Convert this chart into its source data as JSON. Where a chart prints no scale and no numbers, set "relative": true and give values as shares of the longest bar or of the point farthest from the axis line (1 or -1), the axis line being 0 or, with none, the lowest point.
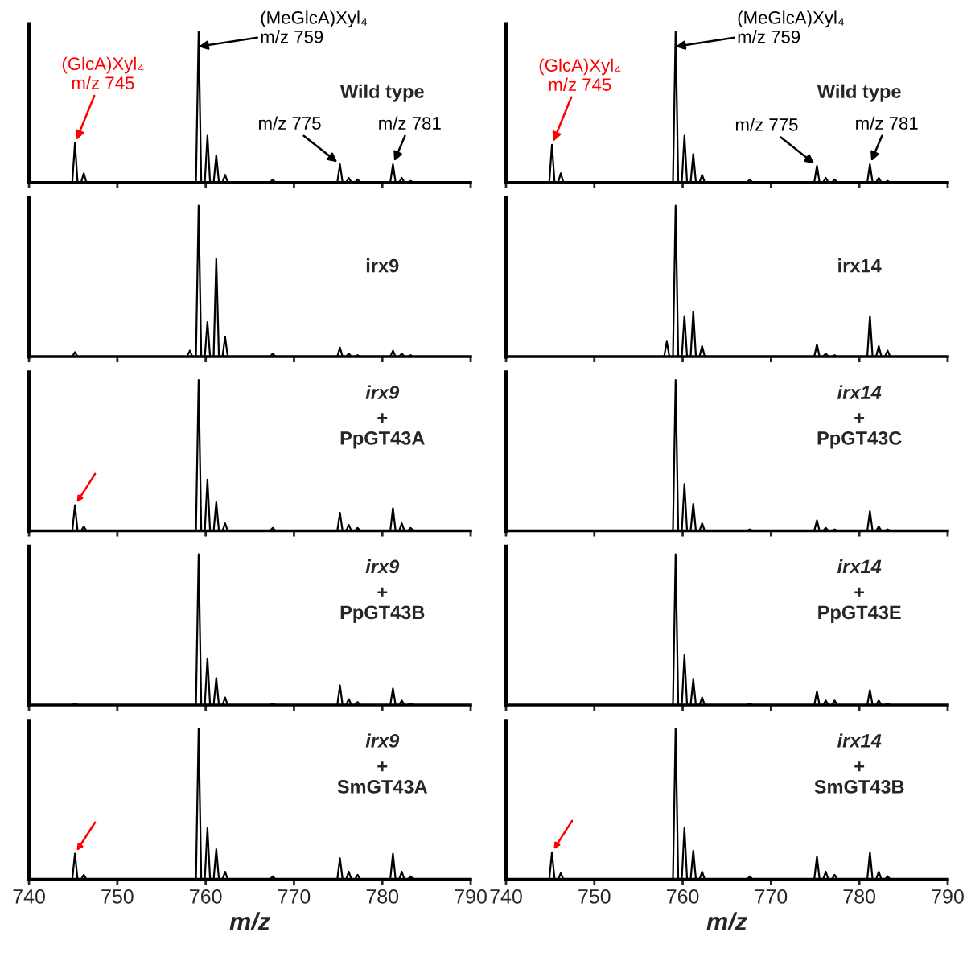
{
  "chart_data": [
    {
      "type": "line",
      "title": "Wild type",
      "relative": true,
      "xlim": [
        740,
        790
      ],
      "xticks": [
        740,
        750,
        760,
        770,
        780,
        790
      ],
      "tick_labels": false,
      "grid": false,
      "legend": false,
      "x": [
        740,
        744.9,
        745.2,
        745.5,
        745.9,
        746.2,
        746.5,
        757.9,
        758.2,
        758.5,
        758.9,
        759.2,
        759.5,
        759.9,
        760.2,
        760.5,
        760.9,
        761.2,
        761.5,
        761.9,
        762.2,
        762.5,
        767.3,
        767.6,
        767.9,
        774.9,
        775.2,
        775.5,
        775.9,
        776.2,
        776.5,
        776.9,
        777.2,
        777.5,
        780.9,
        781.2,
        781.5,
        781.9,
        782.2,
        782.5,
        782.9,
        783.2,
        783.5,
        790
      ],
      "series": [
        {
          "color": "#000000",
          "values": [
            0,
            0,
            0.26,
            0,
            0,
            0.06,
            0,
            0,
            0,
            0,
            0,
            1,
            0,
            0,
            0.31,
            0,
            0,
            0.18,
            0,
            0,
            0.05,
            0,
            0,
            0.02,
            0,
            0,
            0.12,
            0,
            0,
            0.03,
            0,
            0,
            0.02,
            0,
            0,
            0.12,
            0,
            0,
            0.03,
            0,
            0,
            0.01,
            0,
            0
          ]
        }
      ],
      "annotations": [
        {
          "text": "(GlcA)Xyl₄\nm/z 745",
          "x": 745.2,
          "y": 0.26
        },
        {
          "text": "(MeGlcA)Xyl₄\nm/z 759",
          "x": 759.2,
          "y": 0.9
        },
        {
          "text": "m/z 775",
          "x": 775.2,
          "y": 0.12
        },
        {
          "text": "m/z 781",
          "x": 781.2,
          "y": 0.12
        }
      ]
    },
    {
      "type": "line",
      "title": "Wild type",
      "relative": true,
      "xlim": [
        740,
        790
      ],
      "xticks": [
        740,
        750,
        760,
        770,
        780,
        790
      ],
      "tick_labels": false,
      "grid": false,
      "legend": false,
      "x": [
        740,
        744.9,
        745.2,
        745.5,
        745.9,
        746.2,
        746.5,
        757.9,
        758.2,
        758.5,
        758.9,
        759.2,
        759.5,
        759.9,
        760.2,
        760.5,
        760.9,
        761.2,
        761.5,
        761.9,
        762.2,
        762.5,
        767.3,
        767.6,
        767.9,
        774.9,
        775.2,
        775.5,
        775.9,
        776.2,
        776.5,
        776.9,
        777.2,
        777.5,
        780.9,
        781.2,
        781.5,
        781.9,
        782.2,
        782.5,
        782.9,
        783.2,
        783.5,
        790
      ],
      "series": [
        {
          "color": "#000000",
          "values": [
            0,
            0,
            0.25,
            0,
            0,
            0.06,
            0,
            0,
            0,
            0,
            0,
            1,
            0,
            0,
            0.31,
            0,
            0,
            0.19,
            0,
            0,
            0.05,
            0,
            0,
            0.02,
            0,
            0,
            0.11,
            0,
            0,
            0.03,
            0,
            0,
            0.02,
            0,
            0,
            0.12,
            0,
            0,
            0.03,
            0,
            0,
            0.01,
            0,
            0
          ]
        }
      ],
      "annotations": [
        {
          "text": "(GlcA)Xyl₄\nm/z 745",
          "x": 745.2,
          "y": 0.25
        },
        {
          "text": "(MeGlcA)Xyl₄\nm/z 759",
          "x": 759.2,
          "y": 0.9
        },
        {
          "text": "m/z 775",
          "x": 775.2,
          "y": 0.11
        },
        {
          "text": "m/z 781",
          "x": 781.2,
          "y": 0.12
        }
      ]
    },
    {
      "type": "line",
      "title": "irx9",
      "relative": true,
      "xlim": [
        740,
        790
      ],
      "xticks": [
        740,
        750,
        760,
        770,
        780,
        790
      ],
      "tick_labels": false,
      "grid": false,
      "legend": false,
      "x": [
        740,
        744.9,
        745.2,
        745.5,
        745.9,
        746.2,
        746.5,
        757.9,
        758.2,
        758.5,
        758.9,
        759.2,
        759.5,
        759.9,
        760.2,
        760.5,
        760.9,
        761.2,
        761.5,
        761.9,
        762.2,
        762.5,
        767.3,
        767.6,
        767.9,
        774.9,
        775.2,
        775.5,
        775.9,
        776.2,
        776.5,
        776.9,
        777.2,
        777.5,
        780.9,
        781.2,
        781.5,
        781.9,
        782.2,
        782.5,
        782.9,
        783.2,
        783.5,
        790
      ],
      "series": [
        {
          "color": "#000000",
          "values": [
            0,
            0,
            0.03,
            0,
            0,
            0,
            0,
            0,
            0.04,
            0,
            0,
            1,
            0,
            0,
            0.23,
            0,
            0,
            0.65,
            0,
            0,
            0.13,
            0,
            0,
            0.02,
            0,
            0,
            0.06,
            0,
            0,
            0.02,
            0,
            0,
            0.01,
            0,
            0,
            0.04,
            0,
            0,
            0.02,
            0,
            0,
            0.01,
            0,
            0
          ]
        }
      ]
    },
    {
      "type": "line",
      "title": "irx14",
      "relative": true,
      "xlim": [
        740,
        790
      ],
      "xticks": [
        740,
        750,
        760,
        770,
        780,
        790
      ],
      "tick_labels": false,
      "grid": false,
      "legend": false,
      "x": [
        740,
        744.9,
        745.2,
        745.5,
        745.9,
        746.2,
        746.5,
        757.9,
        758.2,
        758.5,
        758.9,
        759.2,
        759.5,
        759.9,
        760.2,
        760.5,
        760.9,
        761.2,
        761.5,
        761.9,
        762.2,
        762.5,
        767.3,
        767.6,
        767.9,
        774.9,
        775.2,
        775.5,
        775.9,
        776.2,
        776.5,
        776.9,
        777.2,
        777.5,
        780.9,
        781.2,
        781.5,
        781.9,
        782.2,
        782.5,
        782.9,
        783.2,
        783.5,
        790
      ],
      "series": [
        {
          "color": "#000000",
          "values": [
            0,
            0,
            0,
            0,
            0,
            0,
            0,
            0,
            0.1,
            0,
            0,
            1,
            0,
            0,
            0.27,
            0,
            0,
            0.3,
            0,
            0,
            0.07,
            0,
            0,
            0,
            0,
            0,
            0.08,
            0,
            0,
            0.02,
            0,
            0,
            0.01,
            0,
            0,
            0.27,
            0,
            0,
            0.07,
            0,
            0,
            0.04,
            0,
            0
          ]
        }
      ]
    },
    {
      "type": "line",
      "title": "irx9",
      "subtitle": "+\nPpGT43A",
      "relative": true,
      "xlim": [
        740,
        790
      ],
      "xticks": [
        740,
        750,
        760,
        770,
        780,
        790
      ],
      "tick_labels": false,
      "grid": false,
      "legend": false,
      "x": [
        740,
        744.9,
        745.2,
        745.5,
        745.9,
        746.2,
        746.5,
        757.9,
        758.2,
        758.5,
        758.9,
        759.2,
        759.5,
        759.9,
        760.2,
        760.5,
        760.9,
        761.2,
        761.5,
        761.9,
        762.2,
        762.5,
        767.3,
        767.6,
        767.9,
        774.9,
        775.2,
        775.5,
        775.9,
        776.2,
        776.5,
        776.9,
        777.2,
        777.5,
        780.9,
        781.2,
        781.5,
        781.9,
        782.2,
        782.5,
        782.9,
        783.2,
        783.5,
        790
      ],
      "series": [
        {
          "color": "#000000",
          "values": [
            0,
            0,
            0.17,
            0,
            0,
            0.03,
            0,
            0,
            0,
            0,
            0,
            1,
            0,
            0,
            0.34,
            0,
            0,
            0.19,
            0,
            0,
            0.05,
            0,
            0,
            0.02,
            0,
            0,
            0.12,
            0,
            0,
            0.04,
            0,
            0,
            0.02,
            0,
            0,
            0.15,
            0,
            0,
            0.05,
            0,
            0,
            0.02,
            0,
            0
          ]
        }
      ]
    },
    {
      "type": "line",
      "title": "irx14",
      "subtitle": "+\nPpGT43C",
      "relative": true,
      "xlim": [
        740,
        790
      ],
      "xticks": [
        740,
        750,
        760,
        770,
        780,
        790
      ],
      "tick_labels": false,
      "grid": false,
      "legend": false,
      "x": [
        740,
        744.9,
        745.2,
        745.5,
        745.9,
        746.2,
        746.5,
        757.9,
        758.2,
        758.5,
        758.9,
        759.2,
        759.5,
        759.9,
        760.2,
        760.5,
        760.9,
        761.2,
        761.5,
        761.9,
        762.2,
        762.5,
        767.3,
        767.6,
        767.9,
        774.9,
        775.2,
        775.5,
        775.9,
        776.2,
        776.5,
        776.9,
        777.2,
        777.5,
        780.9,
        781.2,
        781.5,
        781.9,
        782.2,
        782.5,
        782.9,
        783.2,
        783.5,
        790
      ],
      "series": [
        {
          "color": "#000000",
          "values": [
            0,
            0,
            0,
            0,
            0,
            0,
            0,
            0,
            0,
            0,
            0,
            1,
            0,
            0,
            0.31,
            0,
            0,
            0.18,
            0,
            0,
            0.05,
            0,
            0,
            0.01,
            0,
            0,
            0.07,
            0,
            0,
            0.02,
            0,
            0,
            0.01,
            0,
            0,
            0.13,
            0,
            0,
            0.03,
            0,
            0,
            0.01,
            0,
            0
          ]
        }
      ]
    },
    {
      "type": "line",
      "title": "irx9",
      "subtitle": "+\nPpGT43B",
      "relative": true,
      "xlim": [
        740,
        790
      ],
      "xticks": [
        740,
        750,
        760,
        770,
        780,
        790
      ],
      "tick_labels": false,
      "grid": false,
      "legend": false,
      "x": [
        740,
        744.9,
        745.2,
        745.5,
        745.9,
        746.2,
        746.5,
        757.9,
        758.2,
        758.5,
        758.9,
        759.2,
        759.5,
        759.9,
        760.2,
        760.5,
        760.9,
        761.2,
        761.5,
        761.9,
        762.2,
        762.5,
        767.3,
        767.6,
        767.9,
        774.9,
        775.2,
        775.5,
        775.9,
        776.2,
        776.5,
        776.9,
        777.2,
        777.5,
        780.9,
        781.2,
        781.5,
        781.9,
        782.2,
        782.5,
        782.9,
        783.2,
        783.5,
        790
      ],
      "series": [
        {
          "color": "#000000",
          "values": [
            0,
            0,
            0.01,
            0,
            0,
            0,
            0,
            0,
            0,
            0,
            0,
            1,
            0,
            0,
            0.31,
            0,
            0,
            0.18,
            0,
            0,
            0.05,
            0,
            0,
            0.01,
            0,
            0,
            0.13,
            0,
            0,
            0.04,
            0,
            0,
            0.02,
            0,
            0,
            0.11,
            0,
            0,
            0.03,
            0,
            0,
            0.01,
            0,
            0
          ]
        }
      ]
    },
    {
      "type": "line",
      "title": "irx14",
      "subtitle": "+\nPpGT43E",
      "relative": true,
      "xlim": [
        740,
        790
      ],
      "xticks": [
        740,
        750,
        760,
        770,
        780,
        790
      ],
      "tick_labels": false,
      "grid": false,
      "legend": false,
      "x": [
        740,
        744.9,
        745.2,
        745.5,
        745.9,
        746.2,
        746.5,
        757.9,
        758.2,
        758.5,
        758.9,
        759.2,
        759.5,
        759.9,
        760.2,
        760.5,
        760.9,
        761.2,
        761.5,
        761.9,
        762.2,
        762.5,
        767.3,
        767.6,
        767.9,
        774.9,
        775.2,
        775.5,
        775.9,
        776.2,
        776.5,
        776.9,
        777.2,
        777.5,
        780.9,
        781.2,
        781.5,
        781.9,
        782.2,
        782.5,
        782.9,
        783.2,
        783.5,
        790
      ],
      "series": [
        {
          "color": "#000000",
          "values": [
            0,
            0,
            0,
            0,
            0,
            0,
            0,
            0,
            0,
            0,
            0,
            1,
            0,
            0,
            0.33,
            0,
            0,
            0.17,
            0,
            0,
            0.05,
            0,
            0,
            0.01,
            0,
            0,
            0.09,
            0,
            0,
            0.03,
            0,
            0,
            0.03,
            0,
            0,
            0.1,
            0,
            0,
            0.03,
            0,
            0,
            0.01,
            0,
            0
          ]
        }
      ]
    },
    {
      "type": "line",
      "title": "irx9",
      "subtitle": "+\nSmGT43A",
      "xlabel": "m/z",
      "relative": true,
      "xlim": [
        740,
        790
      ],
      "xticks": [
        740,
        750,
        760,
        770,
        780,
        790
      ],
      "tick_labels": "x",
      "grid": false,
      "legend": false,
      "x": [
        740,
        744.9,
        745.2,
        745.5,
        745.9,
        746.2,
        746.5,
        757.9,
        758.2,
        758.5,
        758.9,
        759.2,
        759.5,
        759.9,
        760.2,
        760.5,
        760.9,
        761.2,
        761.5,
        761.9,
        762.2,
        762.5,
        767.3,
        767.6,
        767.9,
        774.9,
        775.2,
        775.5,
        775.9,
        776.2,
        776.5,
        776.9,
        777.2,
        777.5,
        780.9,
        781.2,
        781.5,
        781.9,
        782.2,
        782.5,
        782.9,
        783.2,
        783.5,
        790
      ],
      "series": [
        {
          "color": "#000000",
          "values": [
            0,
            0,
            0.17,
            0,
            0,
            0.03,
            0,
            0,
            0,
            0,
            0,
            1,
            0,
            0,
            0.34,
            0,
            0,
            0.2,
            0,
            0,
            0.05,
            0,
            0,
            0.02,
            0,
            0,
            0.14,
            0,
            0,
            0.05,
            0,
            0,
            0.03,
            0,
            0,
            0.17,
            0,
            0,
            0.05,
            0,
            0,
            0.02,
            0,
            0
          ]
        }
      ]
    },
    {
      "type": "line",
      "title": "irx14",
      "subtitle": "+\nSmGT43B",
      "xlabel": "m/z",
      "relative": true,
      "xlim": [
        740,
        790
      ],
      "xticks": [
        740,
        750,
        760,
        770,
        780,
        790
      ],
      "tick_labels": "x",
      "grid": false,
      "legend": false,
      "x": [
        740,
        744.9,
        745.2,
        745.5,
        745.9,
        746.2,
        746.5,
        757.9,
        758.2,
        758.5,
        758.9,
        759.2,
        759.5,
        759.9,
        760.2,
        760.5,
        760.9,
        761.2,
        761.5,
        761.9,
        762.2,
        762.5,
        767.3,
        767.6,
        767.9,
        774.9,
        775.2,
        775.5,
        775.9,
        776.2,
        776.5,
        776.9,
        777.2,
        777.5,
        780.9,
        781.2,
        781.5,
        781.9,
        782.2,
        782.5,
        782.9,
        783.2,
        783.5,
        790
      ],
      "series": [
        {
          "color": "#000000",
          "values": [
            0,
            0,
            0.18,
            0,
            0,
            0.04,
            0,
            0,
            0,
            0,
            0,
            1,
            0,
            0,
            0.34,
            0,
            0,
            0.19,
            0,
            0,
            0.05,
            0,
            0,
            0.02,
            0,
            0,
            0.15,
            0,
            0,
            0.05,
            0,
            0,
            0.03,
            0,
            0,
            0.18,
            0,
            0,
            0.05,
            0,
            0,
            0.02,
            0,
            0
          ]
        }
      ]
    }
  ]
}
